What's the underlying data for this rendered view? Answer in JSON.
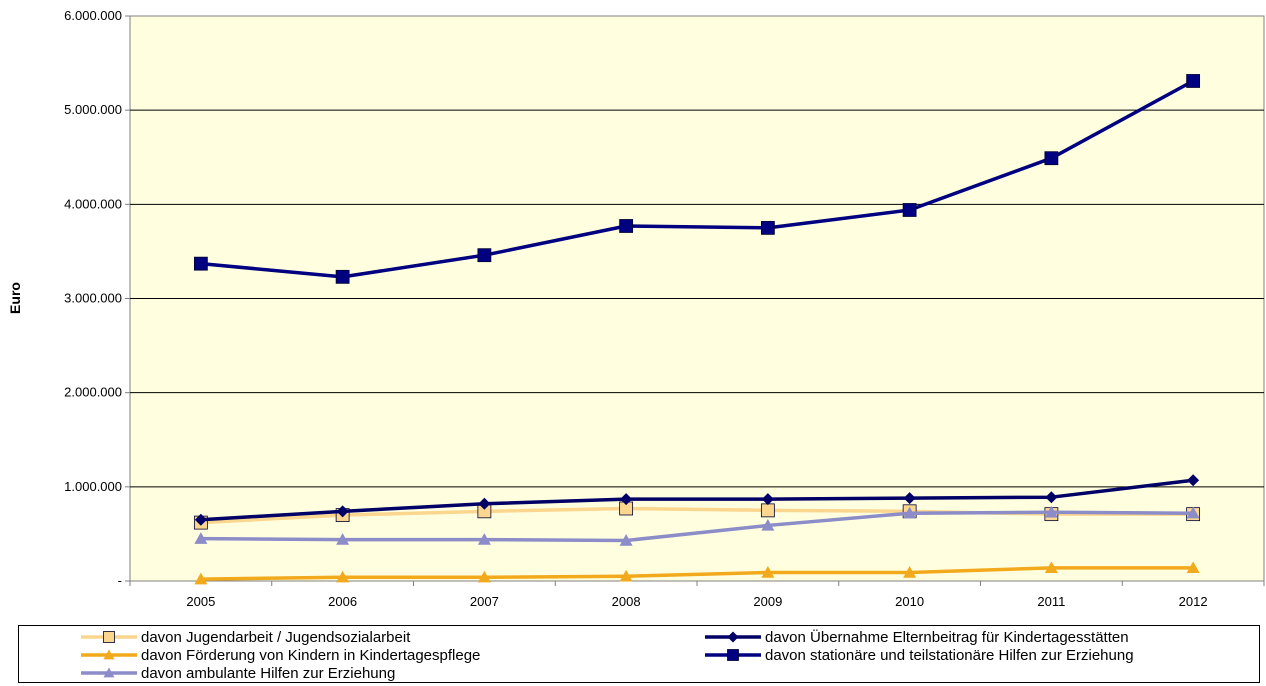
{
  "chart_data": {
    "type": "line",
    "ylabel": "Euro",
    "xlabel": "",
    "x": [
      "2005",
      "2006",
      "2007",
      "2008",
      "2009",
      "2010",
      "2011",
      "2012"
    ],
    "ylim": [
      0,
      6000000
    ],
    "yticks": [
      0,
      1000000,
      2000000,
      3000000,
      4000000,
      5000000,
      6000000
    ],
    "ytick_labels": [
      "-",
      "1.000.000",
      "2.000.000",
      "3.000.000",
      "4.000.000",
      "5.000.000",
      "6.000.000"
    ],
    "grid": "horizontal",
    "plot_background": "#ffffe0",
    "legend_position": "bottom",
    "series": [
      {
        "name": "davon Jugendarbeit / Jugendsozialarbeit",
        "color": "#fbd68f",
        "marker": "square",
        "values": [
          620000,
          700000,
          740000,
          770000,
          750000,
          740000,
          710000,
          710000
        ]
      },
      {
        "name": "davon Übernahme Elternbeitrag für Kindertagesstätten",
        "color": "#000066",
        "marker": "diamond",
        "values": [
          650000,
          740000,
          820000,
          870000,
          870000,
          880000,
          890000,
          1070000
        ]
      },
      {
        "name": "davon Förderung von Kindern in Kindertagespflege",
        "color": "#f2a91c",
        "marker": "triangle",
        "values": [
          20000,
          40000,
          40000,
          50000,
          90000,
          90000,
          140000,
          140000
        ]
      },
      {
        "name": "davon stationäre und teilstationäre Hilfen zur Erziehung",
        "color": "#000080",
        "marker": "square",
        "values": [
          3370000,
          3230000,
          3460000,
          3770000,
          3750000,
          3940000,
          4490000,
          5310000
        ]
      },
      {
        "name": "davon ambulante Hilfen zur Erziehung",
        "color": "#8c8cc8",
        "marker": "triangle",
        "values": [
          450000,
          440000,
          440000,
          430000,
          590000,
          720000,
          730000,
          720000
        ]
      }
    ]
  }
}
